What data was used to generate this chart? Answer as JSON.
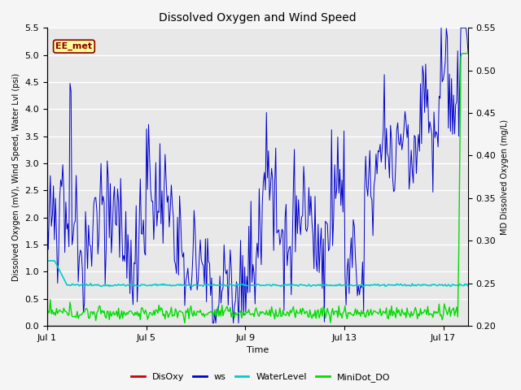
{
  "title": "Dissolved Oxygen and Wind Speed",
  "ylabel_left": "Dissolved Oxygen (mV), Wind Speed, Water Lvl (psi)",
  "ylabel_right": "MD Dissolved Oxygen (mg/L)",
  "xlabel": "Time",
  "ylim_left": [
    0.0,
    5.5
  ],
  "ylim_right": [
    0.2,
    0.55
  ],
  "yticks_left": [
    0.0,
    0.5,
    1.0,
    1.5,
    2.0,
    2.5,
    3.0,
    3.5,
    4.0,
    4.5,
    5.0,
    5.5
  ],
  "yticks_right": [
    0.2,
    0.25,
    0.3,
    0.35,
    0.4,
    0.45,
    0.5,
    0.55
  ],
  "xtick_labels": [
    "Jul 1",
    "Jul 5",
    "Jul 9",
    "Jul 13",
    "Jul 17"
  ],
  "xtick_positions": [
    0,
    4,
    8,
    12,
    16
  ],
  "xlim": [
    0,
    17
  ],
  "annotation_text": "EE_met",
  "annotation_color": "#8b0000",
  "annotation_bg": "#ffff99",
  "annotation_border": "#8b0000",
  "fig_bg_color": "#f5f5f5",
  "plot_bg_color": "#e8e8e8",
  "grid_color": "#ffffff",
  "disoxy_color": "#cc0000",
  "ws_color": "#0000cc",
  "waterlevel_color": "#00cccc",
  "minidot_color": "#00dd00",
  "title_fontsize": 10,
  "label_fontsize": 7,
  "tick_fontsize": 8,
  "legend_fontsize": 8
}
